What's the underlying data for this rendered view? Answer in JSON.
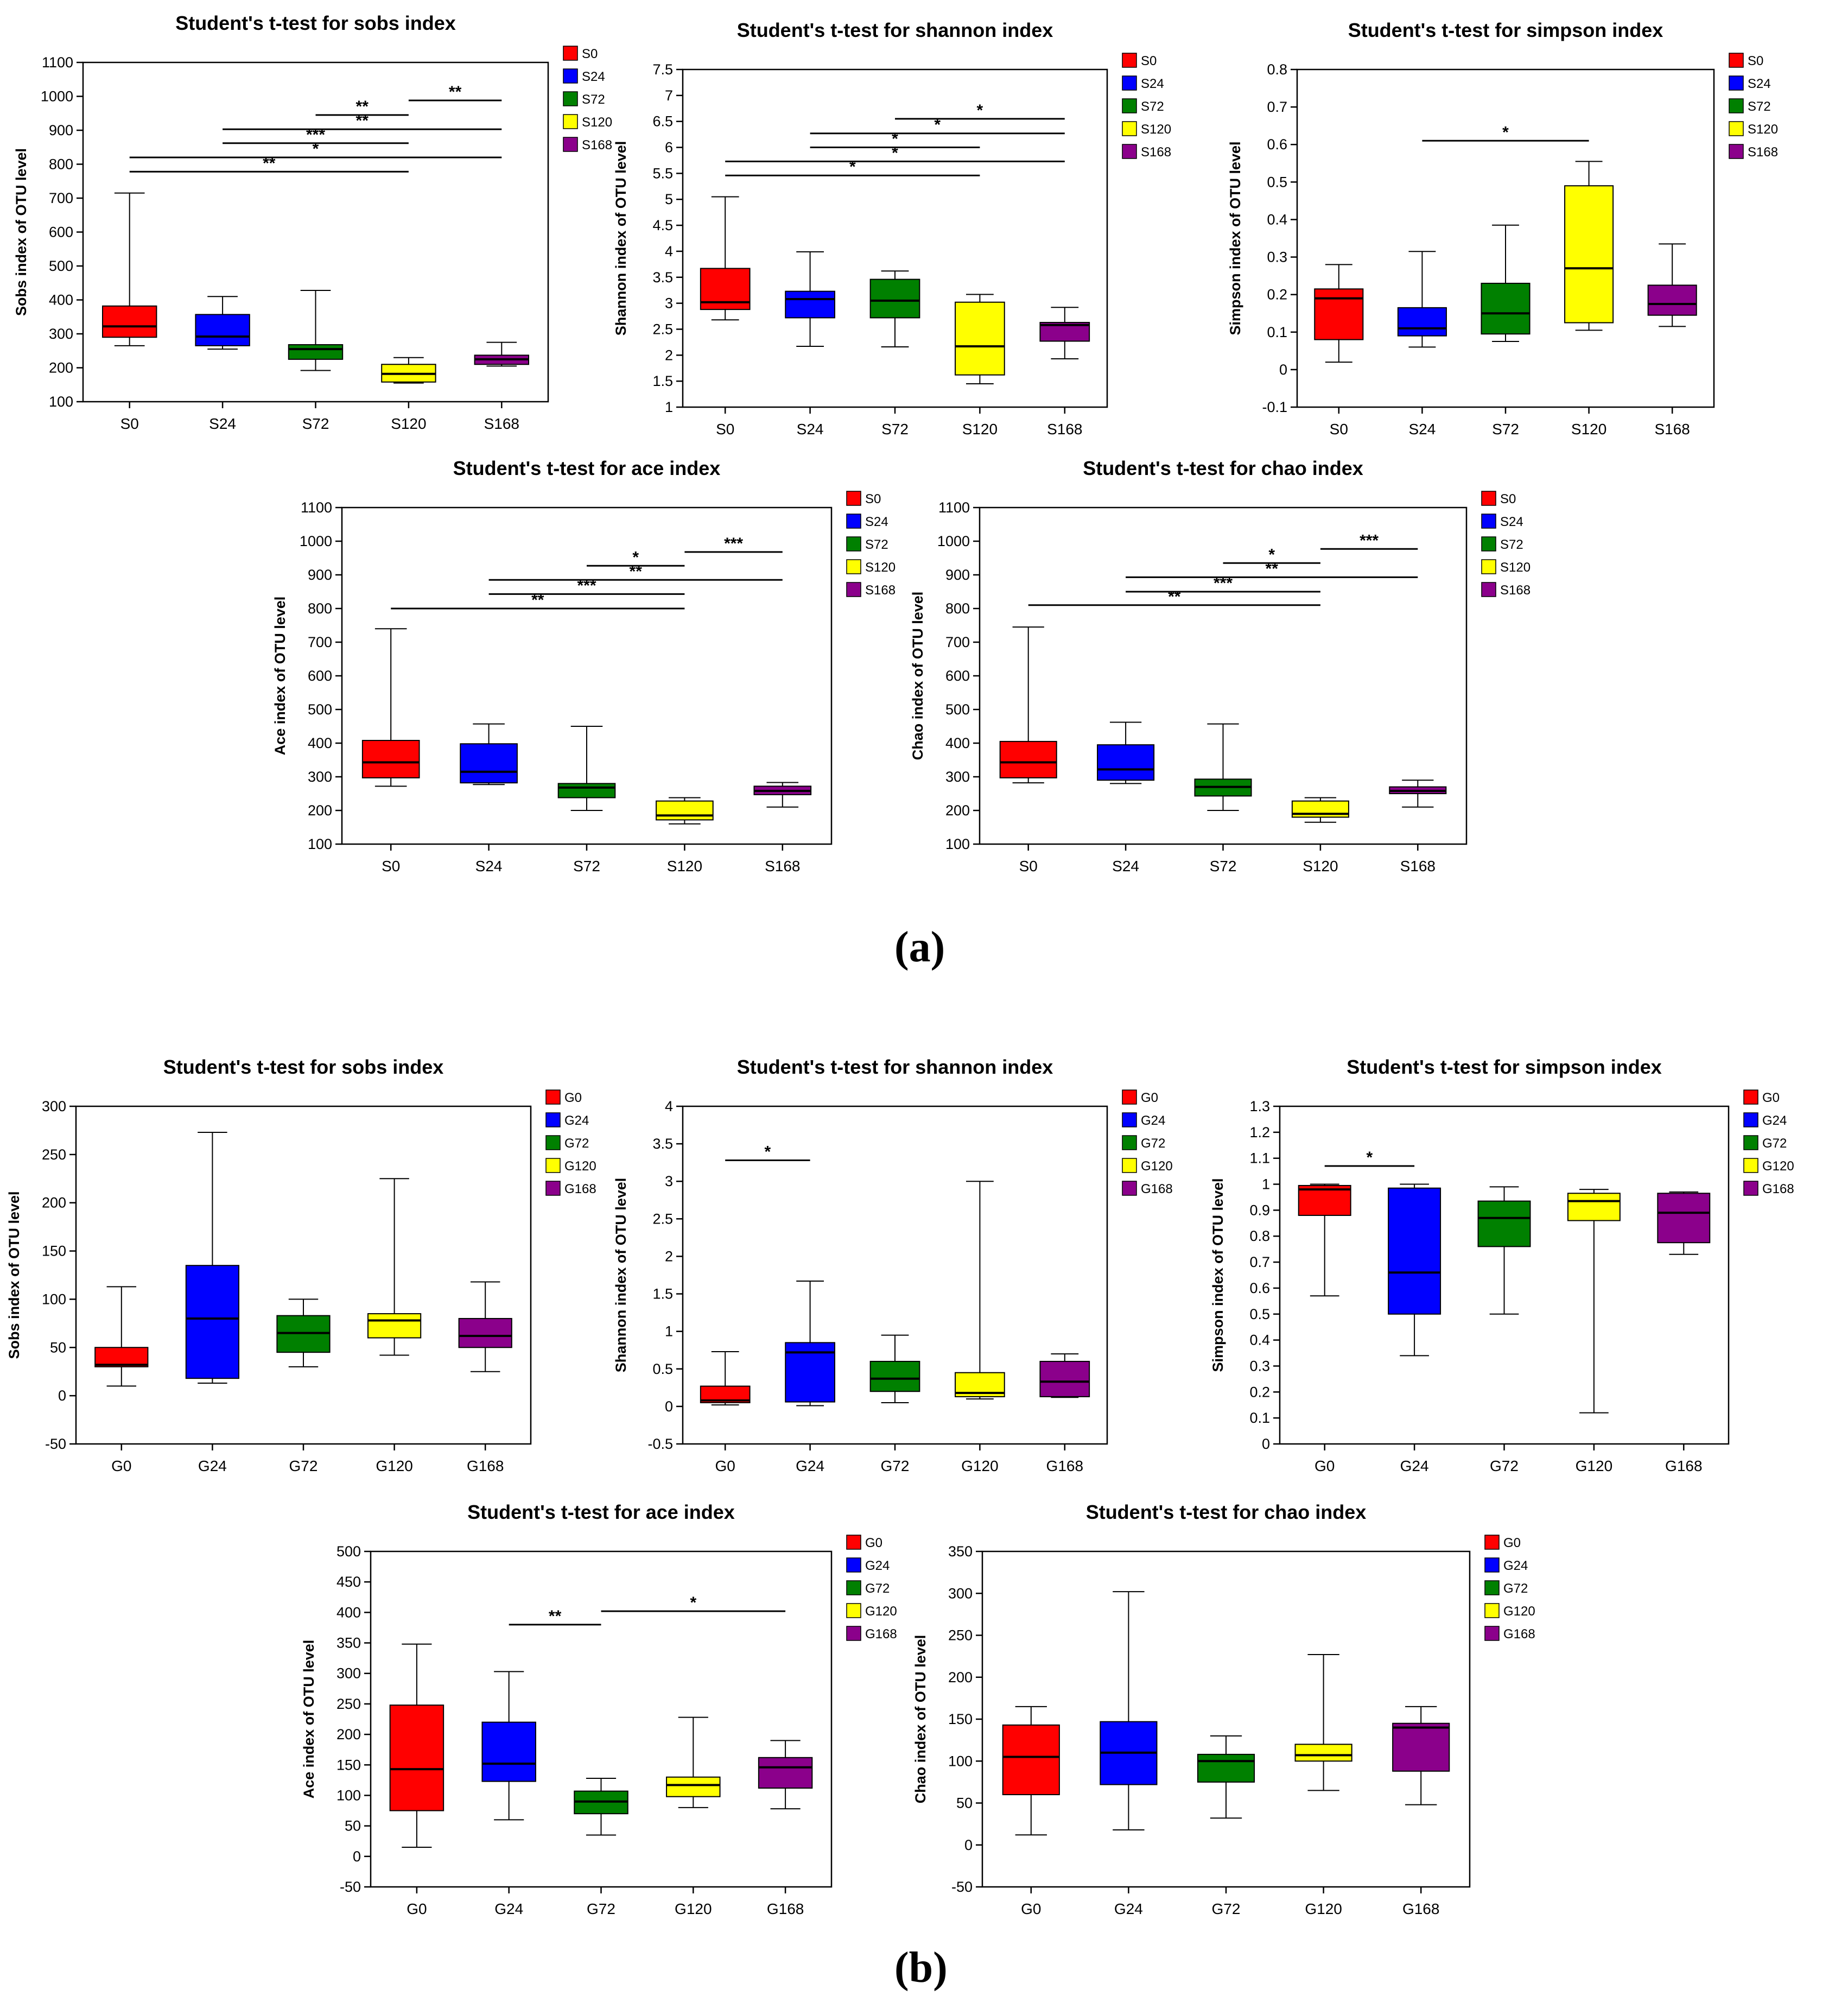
{
  "panel_labels": {
    "a": "(a)",
    "b": "(b)"
  },
  "colors": {
    "c0": "#ff0000",
    "c24": "#0000ff",
    "c72": "#008000",
    "c120": "#ffff00",
    "c168": "#8b008b"
  },
  "chart_data": [
    {
      "type": "box",
      "panel": "a",
      "title": "Student's t-test for sobs index",
      "ylabel": "Sobs index of OTU level",
      "categories": [
        "S0",
        "S24",
        "S72",
        "S120",
        "S168"
      ],
      "legend": [
        "S0",
        "S24",
        "S72",
        "S120",
        "S168"
      ],
      "ylim": [
        100,
        1100
      ],
      "yticks": [
        100,
        200,
        300,
        400,
        500,
        600,
        700,
        800,
        900,
        1000,
        1100
      ],
      "ytick_labels": [
        "100",
        "200",
        "300",
        "400",
        "500",
        "600",
        "700",
        "800",
        "900",
        "1000",
        "1100"
      ],
      "boxes": [
        {
          "min": 265,
          "q1": 290,
          "median": 322,
          "q3": 382,
          "max": 715
        },
        {
          "min": 255,
          "q1": 265,
          "median": 292,
          "q3": 357,
          "max": 410
        },
        {
          "min": 192,
          "q1": 225,
          "median": 255,
          "q3": 268,
          "max": 428
        },
        {
          "min": 155,
          "q1": 158,
          "median": 182,
          "q3": 210,
          "max": 230
        },
        {
          "min": 205,
          "q1": 210,
          "median": 225,
          "q3": 237,
          "max": 275
        }
      ],
      "significance": [
        {
          "from": 3,
          "to": 4,
          "y": 988,
          "label": "**"
        },
        {
          "from": 2,
          "to": 3,
          "y": 945,
          "label": "**"
        },
        {
          "from": 1,
          "to": 4,
          "y": 903,
          "label": "**"
        },
        {
          "from": 1,
          "to": 3,
          "y": 862,
          "label": "***"
        },
        {
          "from": 0,
          "to": 4,
          "y": 820,
          "label": "*"
        },
        {
          "from": 0,
          "to": 3,
          "y": 778,
          "label": "**"
        }
      ]
    },
    {
      "type": "box",
      "panel": "a",
      "title": "Student's t-test for shannon index",
      "ylabel": "Shannon index of OTU level",
      "categories": [
        "S0",
        "S24",
        "S72",
        "S120",
        "S168"
      ],
      "legend": [
        "S0",
        "S24",
        "S72",
        "S120",
        "S168"
      ],
      "ylim": [
        1,
        7.5
      ],
      "yticks": [
        1,
        1.5,
        2,
        2.5,
        3,
        3.5,
        4,
        4.5,
        5,
        5.5,
        6,
        6.5,
        7,
        7.5
      ],
      "ytick_labels": [
        "1",
        "1.5",
        "2",
        "2.5",
        "3",
        "3.5",
        "4",
        "4.5",
        "5",
        "5.5",
        "6",
        "6.5",
        "7",
        "7.5"
      ],
      "boxes": [
        {
          "min": 2.68,
          "q1": 2.88,
          "median": 3.02,
          "q3": 3.67,
          "max": 5.05
        },
        {
          "min": 2.17,
          "q1": 2.72,
          "median": 3.08,
          "q3": 3.23,
          "max": 3.99
        },
        {
          "min": 2.16,
          "q1": 2.72,
          "median": 3.05,
          "q3": 3.46,
          "max": 3.62
        },
        {
          "min": 1.45,
          "q1": 1.62,
          "median": 2.17,
          "q3": 3.02,
          "max": 3.17
        },
        {
          "min": 1.93,
          "q1": 2.27,
          "median": 2.58,
          "q3": 2.63,
          "max": 2.92
        }
      ],
      "significance": [
        {
          "from": 2,
          "to": 4,
          "y": 6.55,
          "label": "*"
        },
        {
          "from": 1,
          "to": 4,
          "y": 6.27,
          "label": "*"
        },
        {
          "from": 1,
          "to": 3,
          "y": 6.0,
          "label": "*"
        },
        {
          "from": 0,
          "to": 4,
          "y": 5.73,
          "label": "*"
        },
        {
          "from": 0,
          "to": 3,
          "y": 5.46,
          "label": "*"
        }
      ]
    },
    {
      "type": "box",
      "panel": "a",
      "title": "Student's t-test for simpson index",
      "ylabel": "Simpson index of OTU level",
      "categories": [
        "S0",
        "S24",
        "S72",
        "S120",
        "S168"
      ],
      "legend": [
        "S0",
        "S24",
        "S72",
        "S120",
        "S168"
      ],
      "ylim": [
        -0.1,
        0.8
      ],
      "yticks": [
        -0.1,
        0,
        0.1,
        0.2,
        0.3,
        0.4,
        0.5,
        0.6,
        0.7,
        0.8
      ],
      "ytick_labels": [
        "-0.1",
        "0",
        "0.1",
        "0.2",
        "0.3",
        "0.4",
        "0.5",
        "0.6",
        "0.7",
        "0.8"
      ],
      "boxes": [
        {
          "min": 0.02,
          "q1": 0.08,
          "median": 0.19,
          "q3": 0.215,
          "max": 0.28
        },
        {
          "min": 0.06,
          "q1": 0.09,
          "median": 0.11,
          "q3": 0.165,
          "max": 0.315
        },
        {
          "min": 0.075,
          "q1": 0.095,
          "median": 0.15,
          "q3": 0.23,
          "max": 0.385
        },
        {
          "min": 0.105,
          "q1": 0.125,
          "median": 0.27,
          "q3": 0.49,
          "max": 0.555
        },
        {
          "min": 0.115,
          "q1": 0.145,
          "median": 0.175,
          "q3": 0.225,
          "max": 0.335
        }
      ],
      "significance": [
        {
          "from": 1,
          "to": 3,
          "y": 0.61,
          "label": "*"
        }
      ]
    },
    {
      "type": "box",
      "panel": "a",
      "title": "Student's t-test for ace index",
      "ylabel": "Ace index of OTU level",
      "categories": [
        "S0",
        "S24",
        "S72",
        "S120",
        "S168"
      ],
      "legend": [
        "S0",
        "S24",
        "S72",
        "S120",
        "S168"
      ],
      "ylim": [
        100,
        1100
      ],
      "yticks": [
        100,
        200,
        300,
        400,
        500,
        600,
        700,
        800,
        900,
        1000,
        1100
      ],
      "ytick_labels": [
        "100",
        "200",
        "300",
        "400",
        "500",
        "600",
        "700",
        "800",
        "900",
        "1000",
        "1100"
      ],
      "boxes": [
        {
          "min": 272,
          "q1": 297,
          "median": 343,
          "q3": 408,
          "max": 740
        },
        {
          "min": 277,
          "q1": 282,
          "median": 315,
          "q3": 398,
          "max": 457
        },
        {
          "min": 200,
          "q1": 238,
          "median": 268,
          "q3": 280,
          "max": 450
        },
        {
          "min": 160,
          "q1": 172,
          "median": 185,
          "q3": 228,
          "max": 238
        },
        {
          "min": 210,
          "q1": 247,
          "median": 258,
          "q3": 272,
          "max": 283
        }
      ],
      "significance": [
        {
          "from": 3,
          "to": 4,
          "y": 968,
          "label": "***"
        },
        {
          "from": 2,
          "to": 3,
          "y": 927,
          "label": "*"
        },
        {
          "from": 1,
          "to": 4,
          "y": 885,
          "label": "**"
        },
        {
          "from": 1,
          "to": 3,
          "y": 843,
          "label": "***"
        },
        {
          "from": 0,
          "to": 3,
          "y": 800,
          "label": "**"
        }
      ]
    },
    {
      "type": "box",
      "panel": "a",
      "title": "Student's t-test for chao index",
      "ylabel": "Chao index of OTU level",
      "categories": [
        "S0",
        "S24",
        "S72",
        "S120",
        "S168"
      ],
      "legend": [
        "S0",
        "S24",
        "S72",
        "S120",
        "S168"
      ],
      "ylim": [
        100,
        1100
      ],
      "yticks": [
        100,
        200,
        300,
        400,
        500,
        600,
        700,
        800,
        900,
        1000,
        1100
      ],
      "ytick_labels": [
        "100",
        "200",
        "300",
        "400",
        "500",
        "600",
        "700",
        "800",
        "900",
        "1000",
        "1100"
      ],
      "boxes": [
        {
          "min": 282,
          "q1": 297,
          "median": 343,
          "q3": 405,
          "max": 745
        },
        {
          "min": 280,
          "q1": 290,
          "median": 322,
          "q3": 395,
          "max": 462
        },
        {
          "min": 200,
          "q1": 243,
          "median": 270,
          "q3": 293,
          "max": 457
        },
        {
          "min": 165,
          "q1": 180,
          "median": 190,
          "q3": 228,
          "max": 238
        },
        {
          "min": 210,
          "q1": 250,
          "median": 258,
          "q3": 270,
          "max": 290
        }
      ],
      "significance": [
        {
          "from": 3,
          "to": 4,
          "y": 977,
          "label": "***"
        },
        {
          "from": 2,
          "to": 3,
          "y": 935,
          "label": "*"
        },
        {
          "from": 1,
          "to": 4,
          "y": 893,
          "label": "**"
        },
        {
          "from": 1,
          "to": 3,
          "y": 850,
          "label": "***"
        },
        {
          "from": 0,
          "to": 3,
          "y": 810,
          "label": "**"
        }
      ]
    },
    {
      "type": "box",
      "panel": "b",
      "title": "Student's t-test for sobs index",
      "ylabel": "Sobs index of OTU level",
      "categories": [
        "G0",
        "G24",
        "G72",
        "G120",
        "G168"
      ],
      "legend": [
        "G0",
        "G24",
        "G72",
        "G120",
        "G168"
      ],
      "ylim": [
        -50,
        300
      ],
      "yticks": [
        -50,
        0,
        50,
        100,
        150,
        200,
        250,
        300
      ],
      "ytick_labels": [
        "-50",
        "0",
        "50",
        "100",
        "150",
        "200",
        "250",
        "300"
      ],
      "boxes": [
        {
          "min": 10,
          "q1": 30,
          "median": 32,
          "q3": 50,
          "max": 113
        },
        {
          "min": 13,
          "q1": 18,
          "median": 80,
          "q3": 135,
          "max": 273
        },
        {
          "min": 30,
          "q1": 45,
          "median": 65,
          "q3": 83,
          "max": 100
        },
        {
          "min": 42,
          "q1": 60,
          "median": 78,
          "q3": 85,
          "max": 225
        },
        {
          "min": 25,
          "q1": 50,
          "median": 62,
          "q3": 80,
          "max": 118
        }
      ],
      "significance": []
    },
    {
      "type": "box",
      "panel": "b",
      "title": "Student's t-test for shannon index",
      "ylabel": "Shannon index of OTU level",
      "categories": [
        "G0",
        "G24",
        "G72",
        "G120",
        "G168"
      ],
      "legend": [
        "G0",
        "G24",
        "G72",
        "G120",
        "G168"
      ],
      "ylim": [
        -0.5,
        4
      ],
      "yticks": [
        -0.5,
        0,
        0.5,
        1,
        1.5,
        2,
        2.5,
        3,
        3.5,
        4
      ],
      "ytick_labels": [
        "-0.5",
        "0",
        "0.5",
        "1",
        "1.5",
        "2",
        "2.5",
        "3",
        "3.5",
        "4"
      ],
      "boxes": [
        {
          "min": 0.02,
          "q1": 0.05,
          "median": 0.08,
          "q3": 0.27,
          "max": 0.73
        },
        {
          "min": 0.01,
          "q1": 0.06,
          "median": 0.72,
          "q3": 0.85,
          "max": 1.67
        },
        {
          "min": 0.05,
          "q1": 0.2,
          "median": 0.37,
          "q3": 0.6,
          "max": 0.95
        },
        {
          "min": 0.1,
          "q1": 0.13,
          "median": 0.18,
          "q3": 0.45,
          "max": 3.0
        },
        {
          "min": 0.12,
          "q1": 0.13,
          "median": 0.33,
          "q3": 0.6,
          "max": 0.7
        }
      ],
      "significance": [
        {
          "from": 0,
          "to": 1,
          "y": 3.28,
          "label": "*"
        }
      ]
    },
    {
      "type": "box",
      "panel": "b",
      "title": "Student's t-test for simpson index",
      "ylabel": "Simpson index of OTU level",
      "categories": [
        "G0",
        "G24",
        "G72",
        "G120",
        "G168"
      ],
      "legend": [
        "G0",
        "G24",
        "G72",
        "G120",
        "G168"
      ],
      "ylim": [
        0,
        1.3
      ],
      "yticks": [
        0,
        0.1,
        0.2,
        0.3,
        0.4,
        0.5,
        0.6,
        0.7,
        0.8,
        0.9,
        1,
        1.1,
        1.2,
        1.3
      ],
      "ytick_labels": [
        "0",
        "0.1",
        "0.2",
        "0.3",
        "0.4",
        "0.5",
        "0.6",
        "0.7",
        "0.8",
        "0.9",
        "1",
        "1.1",
        "1.2",
        "1.3"
      ],
      "boxes": [
        {
          "min": 0.57,
          "q1": 0.88,
          "median": 0.98,
          "q3": 0.995,
          "max": 1.0
        },
        {
          "min": 0.34,
          "q1": 0.5,
          "median": 0.66,
          "q3": 0.985,
          "max": 1.0
        },
        {
          "min": 0.5,
          "q1": 0.76,
          "median": 0.87,
          "q3": 0.935,
          "max": 0.99
        },
        {
          "min": 0.12,
          "q1": 0.86,
          "median": 0.935,
          "q3": 0.965,
          "max": 0.98
        },
        {
          "min": 0.73,
          "q1": 0.775,
          "median": 0.89,
          "q3": 0.965,
          "max": 0.97
        }
      ],
      "significance": [
        {
          "from": 0,
          "to": 1,
          "y": 1.07,
          "label": "*"
        }
      ]
    },
    {
      "type": "box",
      "panel": "b",
      "title": "Student's t-test for ace index",
      "ylabel": "Ace index of OTU level",
      "categories": [
        "G0",
        "G24",
        "G72",
        "G120",
        "G168"
      ],
      "legend": [
        "G0",
        "G24",
        "G72",
        "G120",
        "G168"
      ],
      "ylim": [
        -50,
        500
      ],
      "yticks": [
        -50,
        0,
        50,
        100,
        150,
        200,
        250,
        300,
        350,
        400,
        450,
        500
      ],
      "ytick_labels": [
        "-50",
        "0",
        "50",
        "100",
        "150",
        "200",
        "250",
        "300",
        "350",
        "400",
        "450",
        "500"
      ],
      "boxes": [
        {
          "min": 15,
          "q1": 75,
          "median": 143,
          "q3": 248,
          "max": 348
        },
        {
          "min": 60,
          "q1": 123,
          "median": 152,
          "q3": 220,
          "max": 303
        },
        {
          "min": 35,
          "q1": 70,
          "median": 90,
          "q3": 107,
          "max": 128
        },
        {
          "min": 80,
          "q1": 98,
          "median": 117,
          "q3": 130,
          "max": 228
        },
        {
          "min": 78,
          "q1": 112,
          "median": 146,
          "q3": 162,
          "max": 190
        }
      ],
      "significance": [
        {
          "from": 1,
          "to": 2,
          "y": 380,
          "label": "**"
        },
        {
          "from": 2,
          "to": 4,
          "y": 402,
          "label": "*"
        }
      ]
    },
    {
      "type": "box",
      "panel": "b",
      "title": "Student's t-test for chao index",
      "ylabel": "Chao index of OTU level",
      "categories": [
        "G0",
        "G24",
        "G72",
        "G120",
        "G168"
      ],
      "legend": [
        "G0",
        "G24",
        "G72",
        "G120",
        "G168"
      ],
      "ylim": [
        -50,
        350
      ],
      "yticks": [
        -50,
        0,
        50,
        100,
        150,
        200,
        250,
        300,
        350
      ],
      "ytick_labels": [
        "-50",
        "0",
        "50",
        "100",
        "150",
        "200",
        "250",
        "300",
        "350"
      ],
      "boxes": [
        {
          "min": 12,
          "q1": 60,
          "median": 105,
          "q3": 143,
          "max": 165
        },
        {
          "min": 18,
          "q1": 72,
          "median": 110,
          "q3": 147,
          "max": 302
        },
        {
          "min": 32,
          "q1": 75,
          "median": 100,
          "q3": 108,
          "max": 130
        },
        {
          "min": 65,
          "q1": 100,
          "median": 107,
          "q3": 120,
          "max": 227
        },
        {
          "min": 48,
          "q1": 88,
          "median": 140,
          "q3": 145,
          "max": 165
        }
      ],
      "significance": []
    }
  ]
}
